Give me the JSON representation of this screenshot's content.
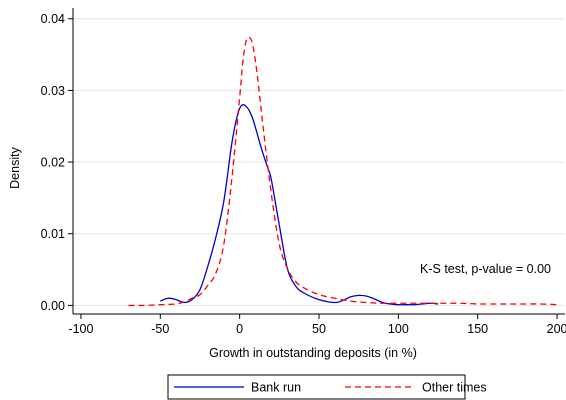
{
  "chart_data": {
    "type": "line",
    "xlabel": "Growth in outstanding deposits (in %)",
    "ylabel": "Density",
    "xlim": [
      -105,
      205
    ],
    "ylim": [
      -0.0012,
      0.0415
    ],
    "x_ticks": [
      -100,
      -50,
      0,
      50,
      100,
      150,
      200
    ],
    "x_tick_labels": [
      "-100",
      "-50",
      "0",
      "50",
      "100",
      "150",
      "200"
    ],
    "y_ticks": [
      0.0,
      0.01,
      0.02,
      0.03,
      0.04
    ],
    "y_tick_labels": [
      "0.00",
      "0.01",
      "0.02",
      "0.03",
      "0.04"
    ],
    "grid": "horizontal",
    "legend_position": "bottom",
    "annotation": "K-S test, p-value = 0.00",
    "series": [
      {
        "name": "Bank run",
        "color": "#0000cc",
        "style": "solid",
        "x": [
          -50,
          -45,
          -40,
          -35,
          -30,
          -25,
          -20,
          -15,
          -10,
          -5,
          -2,
          0,
          2,
          4,
          6,
          8,
          10,
          12,
          15,
          18,
          20,
          25,
          30,
          35,
          40,
          50,
          60,
          65,
          70,
          75,
          80,
          85,
          90,
          95,
          100,
          105,
          110,
          115,
          120,
          125
        ],
        "y": [
          0.0006,
          0.001,
          0.0008,
          0.0004,
          0.0008,
          0.0022,
          0.0055,
          0.0095,
          0.0145,
          0.0225,
          0.026,
          0.0275,
          0.028,
          0.0278,
          0.0272,
          0.0262,
          0.0248,
          0.0232,
          0.021,
          0.019,
          0.0175,
          0.0112,
          0.0052,
          0.0028,
          0.0018,
          0.0008,
          0.0004,
          0.0007,
          0.0012,
          0.0014,
          0.0013,
          0.0009,
          0.0004,
          0.0002,
          0.0001,
          0.0001,
          0.0001,
          0.0002,
          0.0003,
          0.0002
        ]
      },
      {
        "name": "Other times",
        "color": "#ff0000",
        "style": "dashed",
        "x": [
          -70,
          -60,
          -50,
          -40,
          -35,
          -30,
          -25,
          -20,
          -15,
          -10,
          -5,
          0,
          2,
          4,
          6,
          8,
          10,
          12,
          15,
          20,
          25,
          30,
          35,
          40,
          50,
          60,
          70,
          80,
          90,
          100,
          110,
          120,
          130,
          140,
          150,
          160,
          170,
          180,
          190,
          200
        ],
        "y": [
          0.0,
          0.0,
          0.0001,
          0.0002,
          0.0005,
          0.001,
          0.0015,
          0.0028,
          0.0045,
          0.0085,
          0.0175,
          0.029,
          0.034,
          0.0368,
          0.0374,
          0.0366,
          0.034,
          0.0305,
          0.0245,
          0.0155,
          0.0085,
          0.0052,
          0.0034,
          0.0025,
          0.0015,
          0.001,
          0.0006,
          0.0004,
          0.0003,
          0.0003,
          0.0003,
          0.0003,
          0.0003,
          0.0003,
          0.0002,
          0.0002,
          0.0002,
          0.0002,
          0.0002,
          0.0001
        ]
      }
    ]
  }
}
